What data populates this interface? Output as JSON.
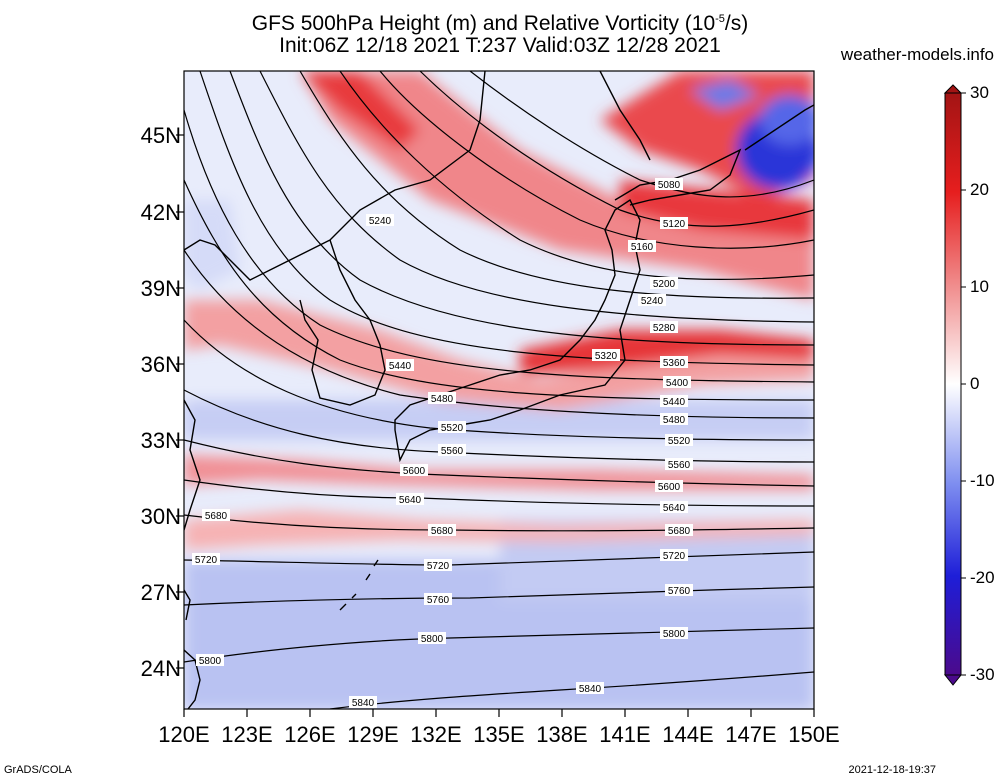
{
  "header": {
    "title_line1_pre": "GFS 500hPa Height (m) and Relative Vorticity (10",
    "title_line1_sup": "-5",
    "title_line1_post": "/s)",
    "title_line2": "Init:06Z 12/18 2021 T:237 Valid:03Z 12/28 2021",
    "site": "weather-models.info"
  },
  "axes": {
    "lat_labels": [
      "45N",
      "42N",
      "39N",
      "36N",
      "33N",
      "30N",
      "27N",
      "24N"
    ],
    "lon_labels": [
      "120E",
      "123E",
      "126E",
      "129E",
      "132E",
      "135E",
      "138E",
      "141E",
      "144E",
      "147E",
      "150E"
    ]
  },
  "colorbar": {
    "ticks": [
      "30",
      "20",
      "10",
      "0",
      "-10",
      "-20",
      "-30"
    ],
    "colors": [
      "#4b0a8c",
      "#1e1ed8",
      "#7f8ff0",
      "#ffffff",
      "#f08c8c",
      "#e61e1e",
      "#a31414"
    ]
  },
  "contour_labels": [
    "5080",
    "5120",
    "5160",
    "5200",
    "5240",
    "5240",
    "5280",
    "5320",
    "5360",
    "5400",
    "5440",
    "5440",
    "5480",
    "5480",
    "5520",
    "5520",
    "5560",
    "5560",
    "5600",
    "5600",
    "5640",
    "5640",
    "5680",
    "5680",
    "5680",
    "5720",
    "5720",
    "5720",
    "5760",
    "5760",
    "5800",
    "5800",
    "5800",
    "5840",
    "5840"
  ],
  "footer": {
    "left": "GrADS/COLA",
    "right": "2021-12-18-19:37"
  }
}
